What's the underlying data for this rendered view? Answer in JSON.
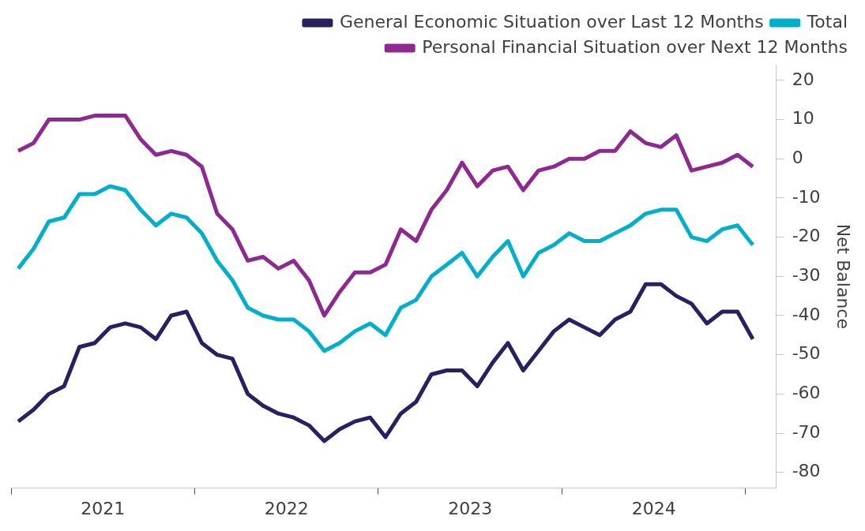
{
  "chart_data": {
    "type": "line",
    "ylabel": "Net Balance",
    "legend": "top right",
    "grid": false,
    "line_style": "solid",
    "marker": "none",
    "x": [
      "2021-01-15",
      "2021-02-15",
      "2021-03-15",
      "2021-04-15",
      "2021-05-15",
      "2021-06-15",
      "2021-07-15",
      "2021-08-15",
      "2021-09-15",
      "2021-10-15",
      "2021-11-15",
      "2021-12-15",
      "2022-01-15",
      "2022-02-15",
      "2022-03-15",
      "2022-04-15",
      "2022-05-15",
      "2022-06-15",
      "2022-07-15",
      "2022-08-15",
      "2022-09-15",
      "2022-10-15",
      "2022-11-15",
      "2022-12-15",
      "2023-01-15",
      "2023-02-15",
      "2023-03-15",
      "2023-04-15",
      "2023-05-15",
      "2023-06-15",
      "2023-07-15",
      "2023-08-15",
      "2023-09-15",
      "2023-10-15",
      "2023-11-15",
      "2023-12-15",
      "2024-01-15",
      "2024-02-15",
      "2024-03-15",
      "2024-04-15",
      "2024-05-15",
      "2024-06-15",
      "2024-07-15",
      "2024-08-15",
      "2024-09-15",
      "2024-10-15",
      "2024-11-15",
      "2024-12-15",
      "2025-01-15"
    ],
    "series": [
      {
        "name": "General Economic Situation over Last 12 Months",
        "color": "#27215f",
        "values": [
          -67,
          -64,
          -60,
          -58,
          -48,
          -47,
          -43,
          -42,
          -43,
          -46,
          -40,
          -39,
          -47,
          -50,
          -51,
          -60,
          -63,
          -65,
          -66,
          -68,
          -72,
          -69,
          -67,
          -66,
          -71,
          -65,
          -62,
          -55,
          -54,
          -54,
          -58,
          -52,
          -47,
          -54,
          -49,
          -44,
          -41,
          -43,
          -45,
          -41,
          -39,
          -32,
          -32,
          -35,
          -37,
          -42,
          -39,
          -39,
          -46
        ]
      },
      {
        "name": "Total",
        "color": "#00b0c8",
        "values": [
          -28,
          -23,
          -16,
          -15,
          -9,
          -9,
          -7,
          -8,
          -13,
          -17,
          -14,
          -15,
          -19,
          -26,
          -31,
          -38,
          -40,
          -41,
          -41,
          -44,
          -49,
          -47,
          -44,
          -42,
          -45,
          -38,
          -36,
          -30,
          -27,
          -24,
          -30,
          -25,
          -21,
          -30,
          -24,
          -22,
          -19,
          -21,
          -21,
          -19,
          -17,
          -14,
          -13,
          -13,
          -20,
          -21,
          -18,
          -17,
          -22
        ]
      },
      {
        "name": "Personal Financial Situation over Next 12 Months",
        "color": "#8e2a8f",
        "values": [
          2,
          4,
          10,
          10,
          10,
          11,
          11,
          11,
          5,
          1,
          2,
          1,
          -2,
          -14,
          -18,
          -26,
          -25,
          -28,
          -26,
          -31,
          -40,
          -34,
          -29,
          -29,
          -27,
          -18,
          -21,
          -13,
          -8,
          -1,
          -7,
          -3,
          -2,
          -8,
          -3,
          -2,
          0,
          0,
          2,
          2,
          7,
          4,
          3,
          6,
          -3,
          -2,
          -1,
          1,
          -2
        ]
      }
    ],
    "xlim": [
      "2021-01",
      "2025-03"
    ],
    "xticks": [
      {
        "value": "2021-01",
        "label": null
      },
      {
        "value": "2021-07",
        "label": "2021"
      },
      {
        "value": "2022-01",
        "label": null
      },
      {
        "value": "2022-07",
        "label": "2022"
      },
      {
        "value": "2023-01",
        "label": null
      },
      {
        "value": "2023-07",
        "label": "2023"
      },
      {
        "value": "2024-01",
        "label": null
      },
      {
        "value": "2024-07",
        "label": "2024"
      },
      {
        "value": "2025-01",
        "label": null
      }
    ],
    "ylim": [
      -84,
      24
    ],
    "yticks": [
      -80,
      -70,
      -60,
      -50,
      -40,
      -30,
      -20,
      -10,
      0,
      10,
      20
    ]
  }
}
